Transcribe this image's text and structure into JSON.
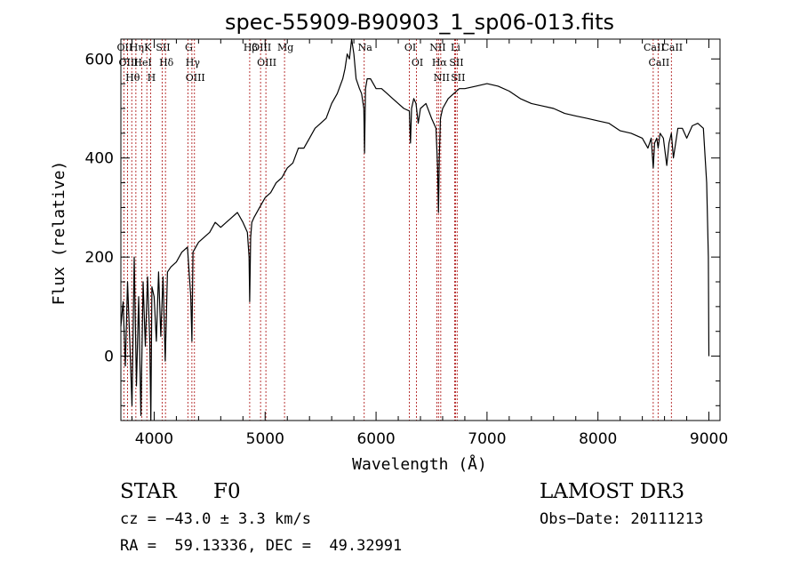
{
  "chart_data": {
    "type": "line",
    "title": "spec-55909-B90903_1_sp06-013.fits",
    "xlabel": "Wavelength (Å)",
    "ylabel": "Flux (relative)",
    "xlim": [
      3700,
      9100
    ],
    "ylim": [
      -130,
      640
    ],
    "xticks": [
      4000,
      5000,
      6000,
      7000,
      8000,
      9000
    ],
    "yticks": [
      0,
      200,
      400,
      600
    ],
    "grid": false,
    "series": [
      {
        "name": "flux",
        "x": [
          3700,
          3720,
          3740,
          3760,
          3780,
          3800,
          3820,
          3840,
          3860,
          3880,
          3900,
          3920,
          3940,
          3960,
          3970,
          3980,
          4000,
          4020,
          4040,
          4060,
          4080,
          4100,
          4120,
          4150,
          4200,
          4250,
          4300,
          4330,
          4340,
          4350,
          4400,
          4450,
          4500,
          4550,
          4600,
          4650,
          4700,
          4750,
          4800,
          4840,
          4855,
          4861,
          4870,
          4880,
          4900,
          4950,
          5000,
          5050,
          5100,
          5150,
          5200,
          5250,
          5300,
          5350,
          5400,
          5450,
          5500,
          5550,
          5600,
          5650,
          5700,
          5720,
          5740,
          5760,
          5780,
          5800,
          5820,
          5850,
          5870,
          5890,
          5896,
          5905,
          5920,
          5950,
          6000,
          6050,
          6100,
          6150,
          6200,
          6250,
          6300,
          6310,
          6320,
          6340,
          6360,
          6380,
          6400,
          6450,
          6500,
          6520,
          6540,
          6555,
          6563,
          6570,
          6580,
          6600,
          6650,
          6700,
          6750,
          6800,
          6900,
          7000,
          7100,
          7200,
          7300,
          7400,
          7500,
          7600,
          7700,
          7800,
          7900,
          8000,
          8100,
          8200,
          8300,
          8400,
          8450,
          8480,
          8498,
          8510,
          8530,
          8542,
          8560,
          8590,
          8620,
          8640,
          8662,
          8680,
          8720,
          8760,
          8800,
          8850,
          8900,
          8950,
          8980,
          8995,
          9000
        ],
        "values": [
          60,
          110,
          -20,
          150,
          30,
          -100,
          200,
          -60,
          120,
          -120,
          150,
          20,
          160,
          30,
          -130,
          140,
          120,
          30,
          170,
          40,
          160,
          -10,
          170,
          180,
          190,
          210,
          220,
          120,
          30,
          210,
          230,
          240,
          250,
          270,
          260,
          270,
          280,
          290,
          270,
          250,
          200,
          110,
          240,
          270,
          280,
          300,
          320,
          330,
          350,
          360,
          380,
          390,
          420,
          420,
          440,
          460,
          470,
          480,
          510,
          530,
          560,
          580,
          610,
          600,
          640,
          610,
          560,
          540,
          530,
          500,
          410,
          540,
          560,
          560,
          540,
          540,
          530,
          520,
          510,
          500,
          495,
          430,
          500,
          520,
          510,
          470,
          500,
          510,
          480,
          470,
          460,
          380,
          290,
          400,
          480,
          500,
          520,
          530,
          540,
          540,
          545,
          550,
          545,
          535,
          520,
          510,
          505,
          500,
          490,
          485,
          480,
          475,
          470,
          455,
          450,
          440,
          420,
          440,
          380,
          430,
          440,
          420,
          450,
          440,
          385,
          430,
          450,
          400,
          460,
          460,
          440,
          465,
          470,
          460,
          350,
          200,
          0
        ]
      }
    ],
    "lines": [
      {
        "label": "Hθ",
        "wl": 3798
      },
      {
        "label": "OII",
        "wl": 3727
      },
      {
        "label": "OIII",
        "wl": 3760
      },
      {
        "label": "Hη",
        "wl": 3835
      },
      {
        "label": "K",
        "wl": 3934
      },
      {
        "label": "HeI",
        "wl": 3889
      },
      {
        "label": "H",
        "wl": 3968
      },
      {
        "label": "SII",
        "wl": 4072
      },
      {
        "label": "Hδ",
        "wl": 4102
      },
      {
        "label": "OIII",
        "wl": 4363
      },
      {
        "label": "Hγ",
        "wl": 4340
      },
      {
        "label": "G",
        "wl": 4304
      },
      {
        "label": "Hβ",
        "wl": 4861
      },
      {
        "label": "OIII",
        "wl": 4959
      },
      {
        "label": "OIII",
        "wl": 5007
      },
      {
        "label": "Mg",
        "wl": 5175
      },
      {
        "label": "Na",
        "wl": 5893
      },
      {
        "label": "OI",
        "wl": 6300
      },
      {
        "label": "OI",
        "wl": 6364
      },
      {
        "label": "Hα",
        "wl": 6563
      },
      {
        "label": "NII",
        "wl": 6548
      },
      {
        "label": "NII",
        "wl": 6583
      },
      {
        "label": "SII",
        "wl": 6716
      },
      {
        "label": "Li",
        "wl": 6708
      },
      {
        "label": "SII",
        "wl": 6731
      },
      {
        "label": "CaII",
        "wl": 8498
      },
      {
        "label": "CaII",
        "wl": 8542
      },
      {
        "label": "CaII",
        "wl": 8662
      }
    ]
  },
  "info": {
    "object_class": "STAR",
    "subclass": "F0",
    "survey": "LAMOST DR3",
    "cz": "cz = −43.0 ± 3.3 km/s",
    "obs_date": "Obs−Date: 20111213",
    "coords": "RA =  59.13336, DEC =  49.32991"
  },
  "colors": {
    "spectrum": "#000000",
    "line_marker": "#b22222",
    "axes": "#000000",
    "background": "#ffffff"
  }
}
